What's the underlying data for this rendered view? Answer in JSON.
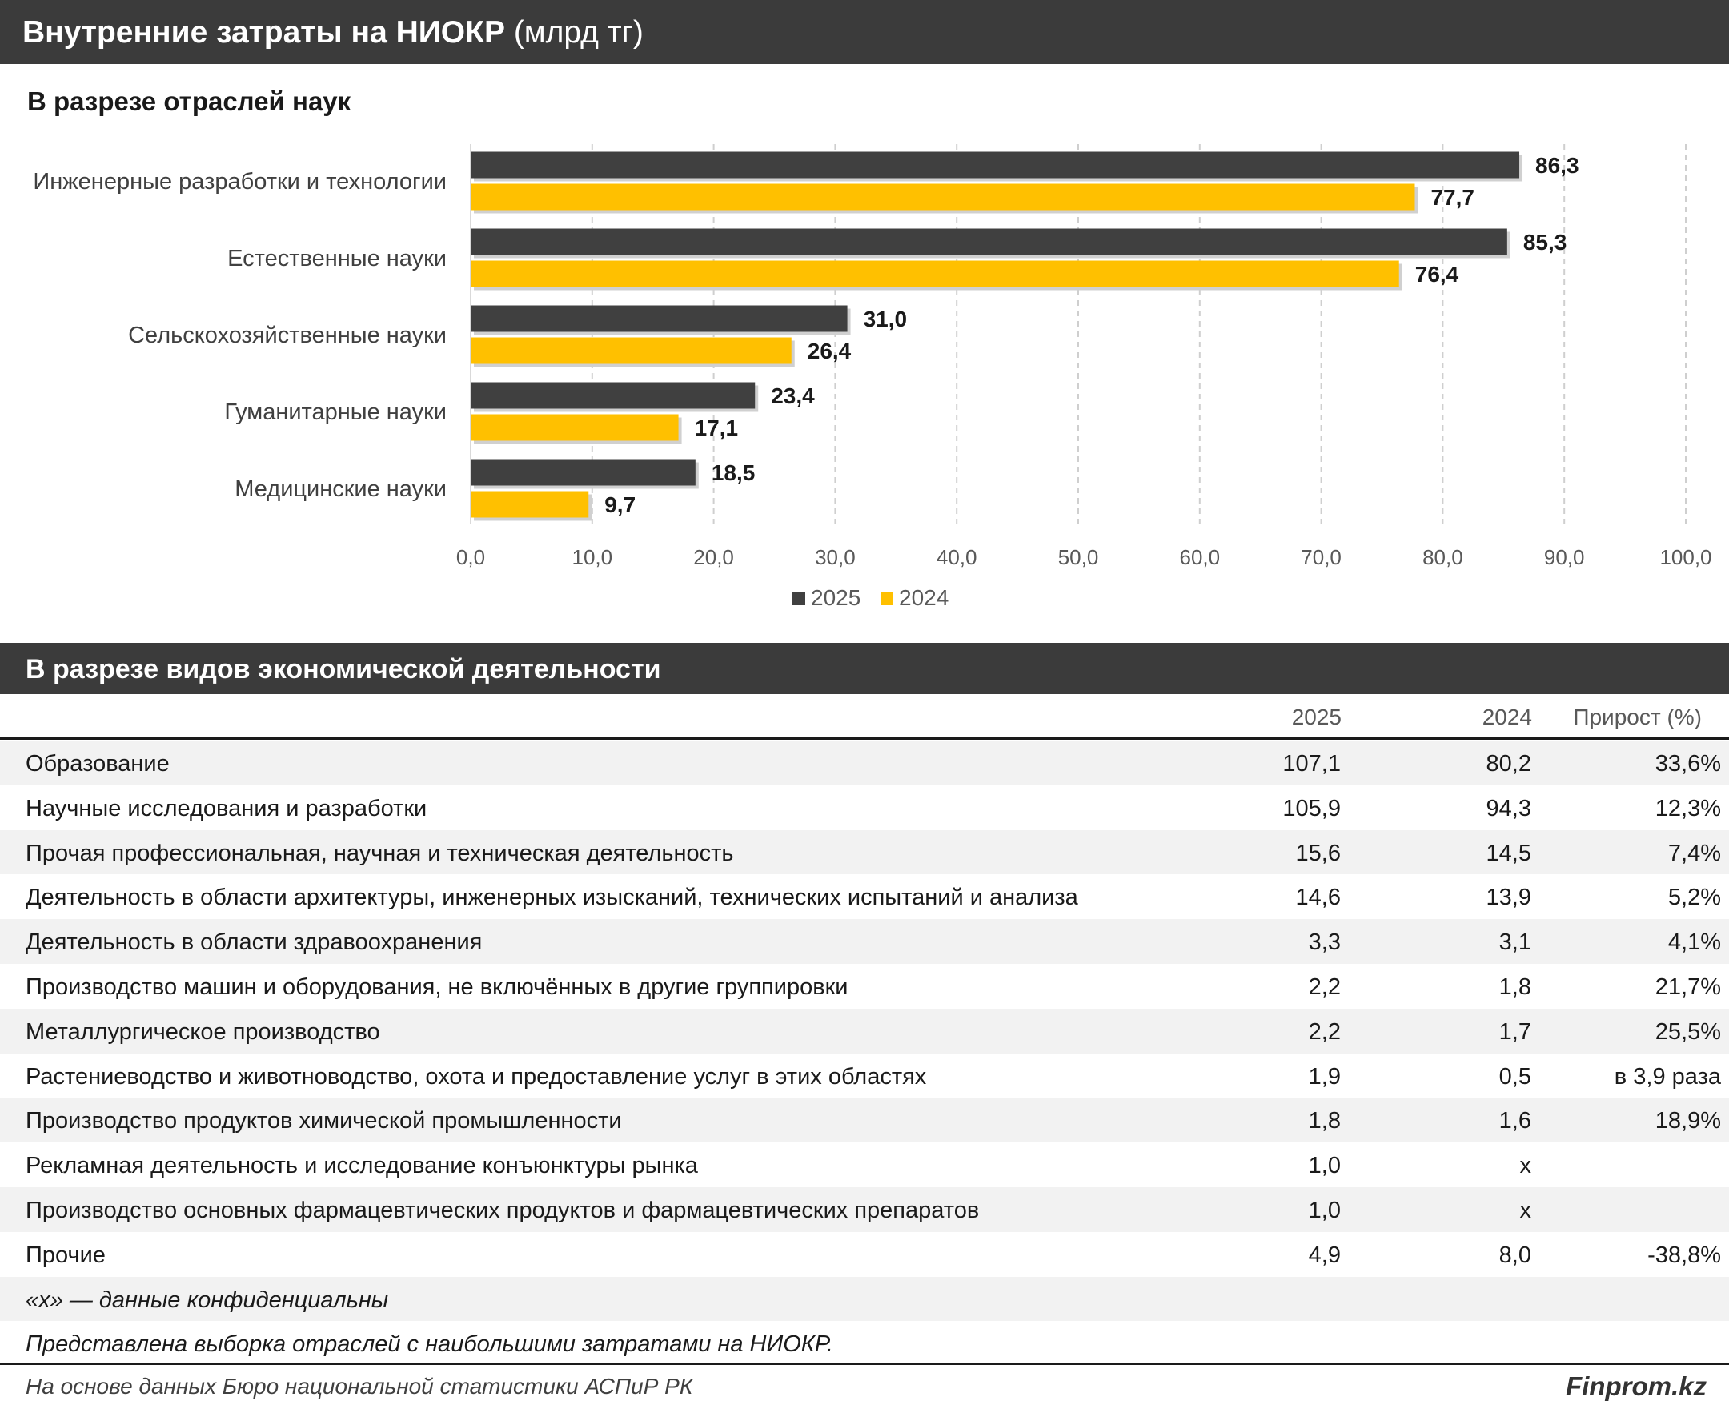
{
  "header": {
    "title": "Внутренние затраты на НИОКР",
    "unit": "(млрд тг)"
  },
  "chart_section": {
    "subtitle": "В разрезе отраслей наук"
  },
  "chart_data": {
    "type": "bar",
    "orientation": "horizontal",
    "categories": [
      "Инженерные разработки и технологии",
      "Естественные науки",
      "Сельскохозяйственные науки",
      "Гуманитарные науки",
      "Медицинские науки"
    ],
    "series": [
      {
        "name": "2025",
        "color": "#404040",
        "values": [
          86.3,
          85.3,
          31.0,
          23.4,
          18.5
        ],
        "labels": [
          "86,3",
          "85,3",
          "31,0",
          "23,4",
          "18,5"
        ]
      },
      {
        "name": "2024",
        "color": "#ffc000",
        "values": [
          77.7,
          76.4,
          26.4,
          17.1,
          9.7
        ],
        "labels": [
          "77,7",
          "76,4",
          "26,4",
          "17,1",
          "9,7"
        ]
      }
    ],
    "xlim": [
      0,
      100
    ],
    "ticks": [
      0,
      10,
      20,
      30,
      40,
      50,
      60,
      70,
      80,
      90,
      100
    ],
    "tick_labels": [
      "0,0",
      "10,0",
      "20,0",
      "30,0",
      "40,0",
      "50,0",
      "60,0",
      "70,0",
      "80,0",
      "90,0",
      "100,0"
    ],
    "grid": "vertical dashed",
    "legend": "bottom-center"
  },
  "table_section": {
    "title": "В разрезе видов экономической деятельности",
    "columns": [
      "2025",
      "2024",
      "Прирост (%)"
    ],
    "rows": [
      {
        "name": "Образование",
        "a": "107,1",
        "b": "80,2",
        "c": "33,6%"
      },
      {
        "name": "Научные исследования и разработки",
        "a": "105,9",
        "b": "94,3",
        "c": "12,3%"
      },
      {
        "name": "Прочая профессиональная, научная и техническая деятельность",
        "a": "15,6",
        "b": "14,5",
        "c": "7,4%"
      },
      {
        "name": "Деятельность в области архитектуры, инженерных изысканий, технических испытаний и анализа",
        "a": "14,6",
        "b": "13,9",
        "c": "5,2%"
      },
      {
        "name": "Деятельность в области здравоохранения",
        "a": "3,3",
        "b": "3,1",
        "c": "4,1%"
      },
      {
        "name": "Производство машин и оборудования, не включённых в другие группировки",
        "a": "2,2",
        "b": "1,8",
        "c": "21,7%"
      },
      {
        "name": "Металлургическое производство",
        "a": "2,2",
        "b": "1,7",
        "c": "25,5%"
      },
      {
        "name": "Растениеводство и животноводство, охота и предоставление услуг в этих областях",
        "a": "1,9",
        "b": "0,5",
        "c": "в 3,9 раза"
      },
      {
        "name": "Производство продуктов химической промышленности",
        "a": "1,8",
        "b": "1,6",
        "c": "18,9%"
      },
      {
        "name": "Рекламная деятельность и исследование конъюнктуры рынка",
        "a": "1,0",
        "b": "х",
        "c": ""
      },
      {
        "name": "Производство основных фармацевтических продуктов и фармацевтических препаратов",
        "a": "1,0",
        "b": "х",
        "c": ""
      },
      {
        "name": "Прочие",
        "a": "4,9",
        "b": "8,0",
        "c": "-38,8%"
      }
    ],
    "notes": [
      "«х» — данные конфиденциальны",
      "Представлена выборка отраслей с наибольшими затратами на НИОКР."
    ]
  },
  "footer": {
    "source": "На основе данных Бюро национальной статистики АСПиР РК",
    "brand": "Finprom.kz"
  }
}
